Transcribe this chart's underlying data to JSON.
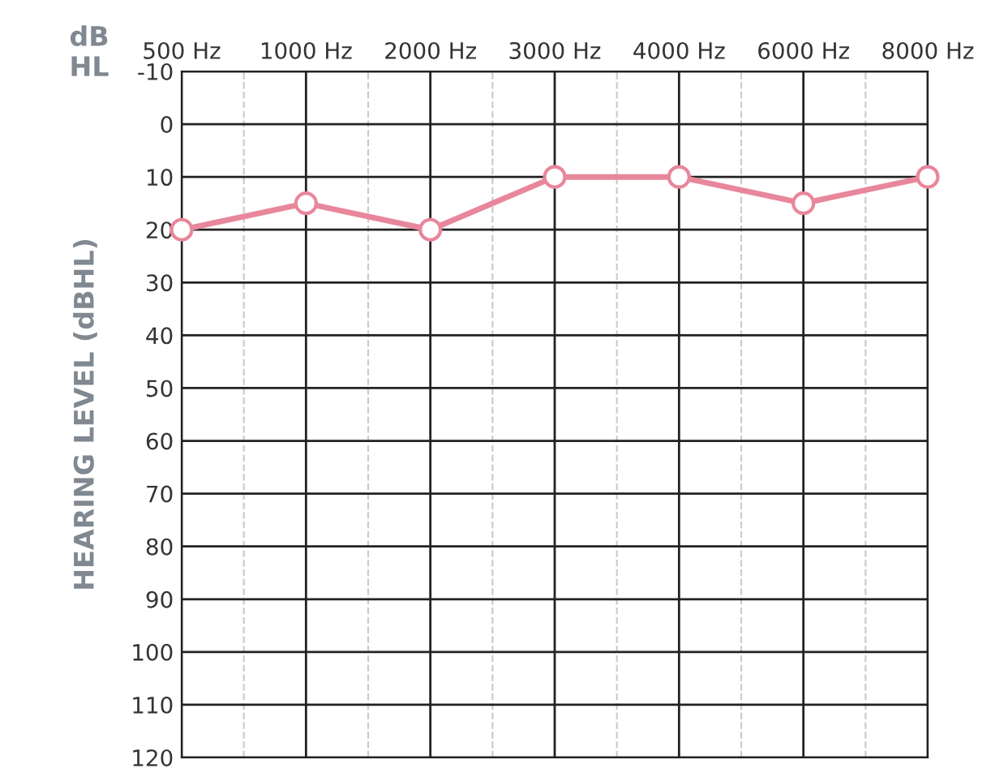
{
  "chart_data": {
    "type": "line",
    "ylabel": "HEARING LEVEL (dBHL)",
    "annotations": [
      "dB\nHL"
    ],
    "categories": [
      "500 Hz",
      "1000 Hz",
      "2000 Hz",
      "3000 Hz",
      "4000 Hz",
      "6000 Hz",
      "8000 Hz"
    ],
    "series": [
      {
        "color": "#e8879b",
        "values": [
          20,
          15,
          20,
          10,
          10,
          15,
          10
        ]
      }
    ],
    "ylim": [
      120,
      -10
    ],
    "yticks": [
      -10,
      0,
      10,
      20,
      30,
      40,
      50,
      60,
      70,
      80,
      90,
      100,
      110,
      120
    ],
    "grid": true,
    "marker": "circle",
    "line_style": "solid"
  }
}
